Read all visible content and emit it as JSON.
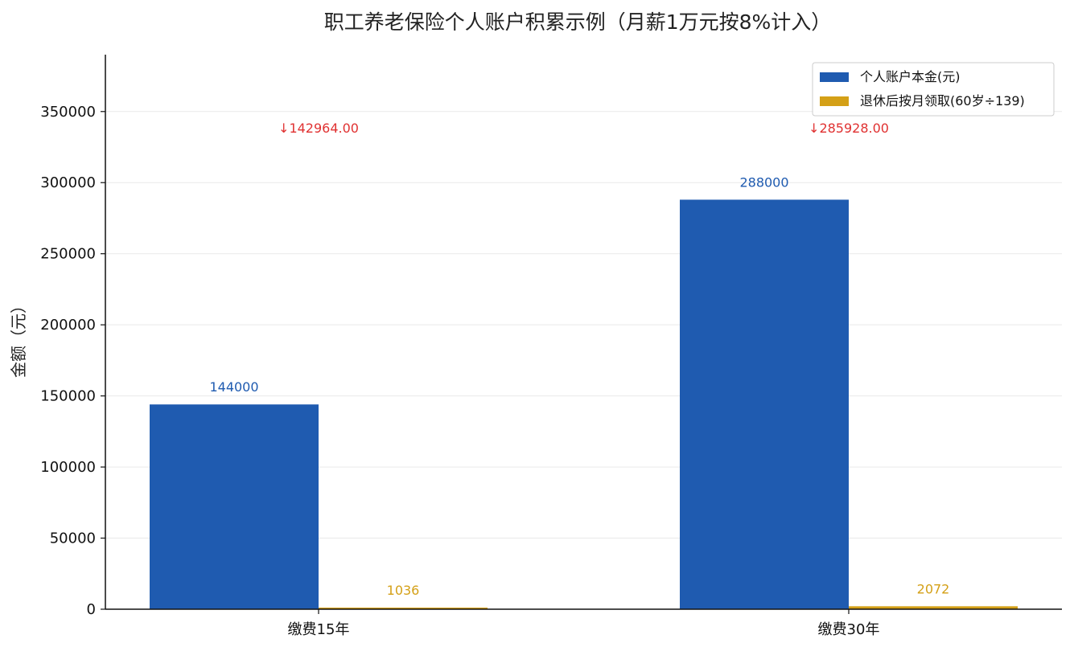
{
  "chart_data": {
    "type": "bar",
    "title": "职工养老保险个人账户积累示例（月薪1万元按8%计入）",
    "xlabel": "",
    "ylabel": "金额（元）",
    "categories": [
      "缴费15年",
      "缴费30年"
    ],
    "series": [
      {
        "name": "个人账户本金(元)",
        "values": [
          144000,
          288000
        ],
        "value_labels": [
          "144000",
          "288000"
        ],
        "color": "#1f5bb0"
      },
      {
        "name": "退休后按月领取(60岁÷139)",
        "values": [
          1036,
          2072
        ],
        "value_labels": [
          "1036",
          "2072"
        ],
        "color": "#d4a017"
      }
    ],
    "annotations": [
      {
        "category": "缴费15年",
        "text": "↓142964.00",
        "color": "#e03131"
      },
      {
        "category": "缴费30年",
        "text": "↓285928.00",
        "color": "#e03131"
      }
    ],
    "ylim": [
      0,
      390000
    ],
    "yticks": [
      0,
      50000,
      100000,
      150000,
      200000,
      250000,
      300000,
      350000
    ],
    "ytick_labels": [
      "0",
      "50000",
      "100000",
      "150000",
      "200000",
      "250000",
      "300000",
      "350000"
    ],
    "grid": true,
    "legend_position": "top-right"
  }
}
